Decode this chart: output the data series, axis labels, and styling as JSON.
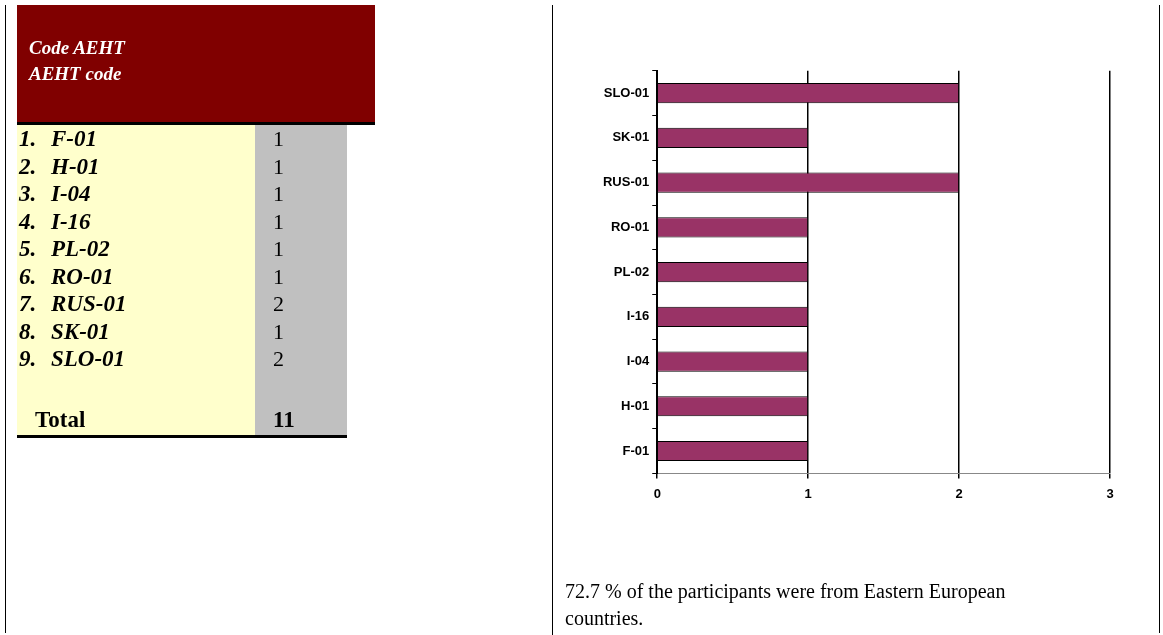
{
  "chart_data": {
    "type": "bar",
    "orientation": "horizontal",
    "categories": [
      "SLO-01",
      "SK-01",
      "RUS-01",
      "RO-01",
      "PL-02",
      "I-16",
      "I-04",
      "H-01",
      "F-01"
    ],
    "values": [
      2,
      1,
      2,
      1,
      1,
      1,
      1,
      1,
      1
    ],
    "color": "#993366",
    "xlim": [
      0,
      3
    ],
    "xticks": [
      0,
      1,
      2,
      3
    ],
    "grid": "x",
    "legend": false,
    "annotations": [
      "Code AEHT",
      "AEHT code",
      "1.",
      "F-01",
      "1",
      "2.",
      "H-01",
      "1",
      "3.",
      "I-04",
      "1",
      "4.",
      "I-16",
      "1",
      "5.",
      "PL-02",
      "1",
      "6.",
      "RO-01",
      "1",
      "7.",
      "RUS-01",
      "2",
      "8.",
      "SK-01",
      "1",
      "9.",
      "SLO-01",
      "2",
      "Total",
      "11",
      "72.7 % of the participants were from Eastern European countries."
    ]
  }
}
